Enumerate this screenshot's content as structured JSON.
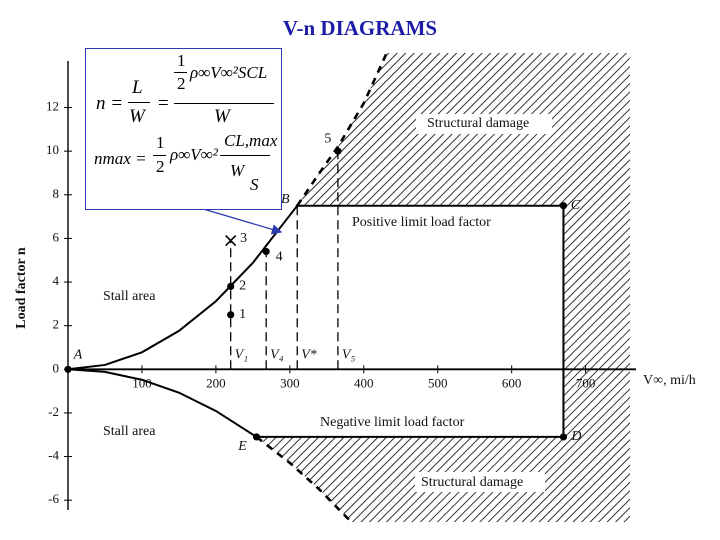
{
  "title": "V-n DIAGRAMS",
  "formula_box": {
    "line1": {
      "lhs": "n =",
      "f1_num": "L",
      "f1_den": "W",
      "eq": "=",
      "half_num": "1",
      "half_den": "2",
      "expr": "ρ∞V∞²SCL",
      "f2_den": "W"
    },
    "line2": {
      "lhs": "nmax =",
      "half_num": "1",
      "half_den": "2",
      "expr": "ρ∞V∞²",
      "f_num": "CL,max",
      "f_den_a": "W",
      "f_den_b": "S"
    }
  },
  "chart_data": {
    "type": "line",
    "y_label": "Load factor n",
    "x_label": "V∞, mi/h",
    "xlim": [
      0,
      760
    ],
    "ylim": [
      -7,
      14.5
    ],
    "xticks": [
      100,
      200,
      300,
      400,
      500,
      600,
      700
    ],
    "yticks": [
      -6,
      -4,
      -2,
      0,
      2,
      4,
      6,
      8,
      10,
      12
    ],
    "series": [
      {
        "color": "#000000",
        "dash": false,
        "x": [
          0,
          50,
          100,
          150,
          200,
          250,
          310
        ],
        "values": [
          0,
          0.2,
          0.78,
          1.76,
          3.12,
          4.88,
          7.5
        ]
      },
      {
        "color": "#000000",
        "dash": true,
        "x": [
          310,
          340,
          365,
          400,
          431
        ],
        "values": [
          7.5,
          9.0,
          10.2,
          12.2,
          14.5
        ]
      },
      {
        "color": "#000000",
        "dash": false,
        "x": [
          0,
          50,
          100,
          150,
          200,
          255
        ],
        "values": [
          0,
          -0.12,
          -0.48,
          -1.07,
          -1.91,
          -3.1
        ]
      },
      {
        "color": "#000000",
        "dash": true,
        "x": [
          255,
          300,
          340,
          383
        ],
        "values": [
          -3.1,
          -4.29,
          -5.51,
          -7.0
        ]
      },
      {
        "color": "#000000",
        "dash": false,
        "x": [
          310,
          670,
          670,
          255
        ],
        "values": [
          7.5,
          7.5,
          -3.1,
          -3.1
        ]
      }
    ],
    "points": [
      {
        "label": "A",
        "x": 0,
        "y": 0
      },
      {
        "label": "1",
        "x": 220,
        "y": 2.5
      },
      {
        "label": "2",
        "x": 220,
        "y": 3.8
      },
      {
        "label": "3",
        "x": 220,
        "y": 5.9
      },
      {
        "label": "4",
        "x": 268,
        "y": 5.4
      },
      {
        "label": "5",
        "x": 365,
        "y": 10
      },
      {
        "label": "B",
        "x": 310,
        "y": 7.5
      },
      {
        "label": "C",
        "x": 670,
        "y": 7.5
      },
      {
        "label": "D",
        "x": 670,
        "y": -3.1
      },
      {
        "label": "E",
        "x": 255,
        "y": -3.1
      }
    ],
    "v_markers": [
      {
        "label": "V₁",
        "x": 220,
        "top": 5.9
      },
      {
        "label": "V₄",
        "x": 268,
        "top": 5.4
      },
      {
        "label": "V*",
        "x": 310,
        "top": 7.5
      },
      {
        "label": "V₅",
        "x": 365,
        "top": 10
      }
    ],
    "annotations": {
      "structural_damage_top": "Structural damage",
      "positive_limit": "Positive limit load factor",
      "negative_limit": "Negative limit load factor",
      "structural_damage_bottom": "Structural damage",
      "stall_area_top": "Stall area",
      "stall_area_bottom": "Stall area"
    }
  }
}
